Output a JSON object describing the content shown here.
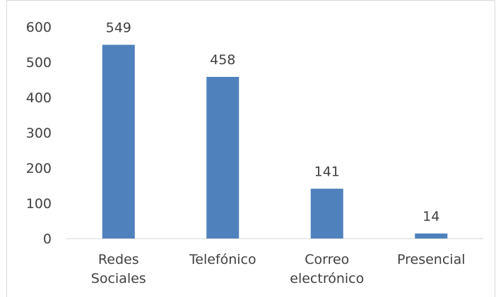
{
  "chart_data": {
    "type": "bar",
    "title": "",
    "xlabel": "",
    "ylabel": "",
    "categories": [
      [
        "Redes",
        "Sociales"
      ],
      [
        "Telefónico"
      ],
      [
        "Correo",
        "electrónico"
      ],
      [
        "Presencial"
      ]
    ],
    "values": [
      549,
      458,
      141,
      14
    ],
    "data_labels": [
      "549",
      "458",
      "141",
      "14"
    ],
    "ylim": [
      0,
      600
    ],
    "yticks": [
      0,
      100,
      200,
      300,
      400,
      500,
      600
    ],
    "ytick_labels": [
      "0",
      "100",
      "200",
      "300",
      "400",
      "500",
      "600"
    ],
    "grid": false,
    "legend": false,
    "colors": {
      "bar": "#4f81bd",
      "axis": "#d9d9d9",
      "text": "#404040"
    }
  }
}
